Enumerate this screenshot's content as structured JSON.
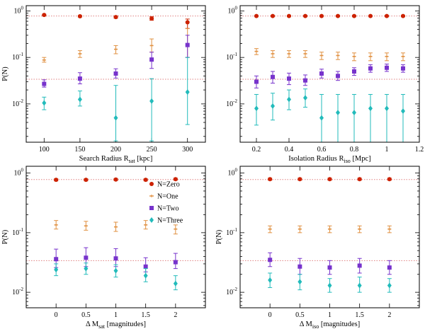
{
  "colors": {
    "N=Zero": "#cc2200",
    "N=One": "#e09040",
    "N=Two": "#7733cc",
    "N=Three": "#22bbbb",
    "ref_line": "#e08080"
  },
  "chart_data": [
    {
      "type": "scatter",
      "subtype": "errorbar",
      "xlabel": "Search Radius R",
      "xlabel_sub": "sat",
      "xlabel_suffix": " [kpc]",
      "ylabel": "P(N)",
      "yscale": "log",
      "xlim": [
        75,
        325
      ],
      "ylim": [
        0.0015,
        1.3
      ],
      "xticks": [
        100,
        150,
        200,
        250,
        300
      ],
      "xtick_labels": [
        "100",
        "150",
        "200",
        "250",
        "300"
      ],
      "reference_lines": [
        0.78,
        0.034
      ],
      "series": [
        {
          "name": "N=Zero",
          "marker": "circle",
          "x": [
            100,
            150,
            200,
            250,
            300
          ],
          "y": [
            0.82,
            0.77,
            0.74,
            0.69,
            0.57
          ],
          "ylow": [
            0.79,
            0.74,
            0.7,
            0.63,
            0.42
          ],
          "yhigh": [
            0.85,
            0.8,
            0.78,
            0.75,
            0.67
          ]
        },
        {
          "name": "N=One",
          "marker": "hline",
          "x": [
            100,
            150,
            200,
            250,
            300
          ],
          "y": [
            0.088,
            0.12,
            0.15,
            0.18,
            0.18
          ],
          "ylow": [
            0.079,
            0.1,
            0.12,
            0.13,
            0.1
          ],
          "yhigh": [
            0.1,
            0.14,
            0.18,
            0.25,
            0.42
          ]
        },
        {
          "name": "N=Two",
          "marker": "square",
          "x": [
            100,
            150,
            200,
            250,
            300
          ],
          "y": [
            0.027,
            0.035,
            0.045,
            0.09,
            0.185
          ],
          "ylow": [
            0.023,
            0.027,
            0.036,
            0.058,
            0.1
          ],
          "yhigh": [
            0.033,
            0.047,
            0.057,
            0.13,
            0.3
          ]
        },
        {
          "name": "N=Three",
          "marker": "diamond",
          "x": [
            100,
            150,
            200,
            250,
            300
          ],
          "y": [
            0.0105,
            0.0125,
            0.005,
            0.0115,
            0.018
          ],
          "ylow": [
            0.0075,
            0.009,
            0.0016,
            0.0016,
            0.0036
          ],
          "yhigh": [
            0.014,
            0.019,
            0.025,
            0.035,
            0.1
          ]
        }
      ]
    },
    {
      "type": "scatter",
      "subtype": "errorbar",
      "xlabel": "Isolation Radius R",
      "xlabel_sub": "iso",
      "xlabel_suffix": " [Mpc]",
      "ylabel": "",
      "yscale": "log",
      "xlim": [
        0.1,
        1.2
      ],
      "ylim": [
        0.0015,
        1.3
      ],
      "xticks": [
        0.2,
        0.4,
        0.6,
        0.8,
        1.0,
        1.2
      ],
      "xtick_labels": [
        "0.2",
        "0.4",
        "0.6",
        "0.8",
        "1",
        "1.2"
      ],
      "reference_lines": [
        0.78,
        0.034
      ],
      "series": [
        {
          "name": "N=Zero",
          "marker": "circle",
          "x": [
            0.2,
            0.3,
            0.4,
            0.5,
            0.6,
            0.7,
            0.8,
            0.9,
            1.0,
            1.1
          ],
          "y": [
            0.78,
            0.78,
            0.78,
            0.78,
            0.78,
            0.78,
            0.78,
            0.78,
            0.78,
            0.78
          ],
          "ylow": [
            0.76,
            0.76,
            0.76,
            0.76,
            0.76,
            0.76,
            0.76,
            0.76,
            0.76,
            0.76
          ],
          "yhigh": [
            0.8,
            0.8,
            0.8,
            0.8,
            0.8,
            0.8,
            0.8,
            0.8,
            0.8,
            0.8
          ]
        },
        {
          "name": "N=One",
          "marker": "hline",
          "x": [
            0.2,
            0.3,
            0.4,
            0.5,
            0.6,
            0.7,
            0.8,
            0.9,
            1.0,
            1.1
          ],
          "y": [
            0.135,
            0.12,
            0.12,
            0.12,
            0.11,
            0.11,
            0.105,
            0.105,
            0.105,
            0.105
          ],
          "ylow": [
            0.115,
            0.1,
            0.1,
            0.1,
            0.09,
            0.09,
            0.085,
            0.085,
            0.085,
            0.085
          ],
          "yhigh": [
            0.155,
            0.14,
            0.14,
            0.14,
            0.13,
            0.13,
            0.125,
            0.125,
            0.125,
            0.125
          ]
        },
        {
          "name": "N=Two",
          "marker": "square",
          "x": [
            0.2,
            0.3,
            0.4,
            0.5,
            0.6,
            0.7,
            0.8,
            0.9,
            1.0,
            1.1
          ],
          "y": [
            0.03,
            0.038,
            0.035,
            0.032,
            0.045,
            0.04,
            0.05,
            0.058,
            0.06,
            0.058
          ],
          "ylow": [
            0.022,
            0.028,
            0.026,
            0.025,
            0.036,
            0.032,
            0.041,
            0.048,
            0.05,
            0.048
          ],
          "yhigh": [
            0.04,
            0.05,
            0.046,
            0.042,
            0.056,
            0.05,
            0.06,
            0.07,
            0.072,
            0.07
          ]
        },
        {
          "name": "N=Three",
          "marker": "diamond",
          "x": [
            0.2,
            0.3,
            0.4,
            0.5,
            0.6,
            0.7,
            0.8,
            0.9,
            1.0,
            1.1
          ],
          "y": [
            0.008,
            0.009,
            0.0125,
            0.0135,
            0.005,
            0.0065,
            0.0065,
            0.008,
            0.008,
            0.007
          ],
          "ylow": [
            0.0035,
            0.0045,
            0.0075,
            0.0085,
            0.0015,
            0.0015,
            0.0015,
            0.0015,
            0.0015,
            0.0015
          ],
          "yhigh": [
            0.016,
            0.017,
            0.02,
            0.021,
            0.016,
            0.016,
            0.016,
            0.016,
            0.016,
            0.016
          ]
        }
      ]
    },
    {
      "type": "scatter",
      "subtype": "errorbar",
      "xlabel": "Δ M",
      "xlabel_sub": "sat",
      "xlabel_suffix": " [magnitudes]",
      "ylabel": "P(N)",
      "yscale": "log",
      "xlim": [
        -0.5,
        2.5
      ],
      "ylim": [
        0.0055,
        1.3
      ],
      "xticks": [
        0,
        0.5,
        1,
        1.5,
        2
      ],
      "xtick_labels": [
        "0",
        "0.5",
        "1",
        "1.5",
        "2"
      ],
      "reference_lines": [
        0.78,
        0.034
      ],
      "legend": {
        "position": "upper right",
        "entries": [
          "N=Zero",
          "N=One",
          "N=Two",
          "N=Three"
        ]
      },
      "series": [
        {
          "name": "N=Zero",
          "marker": "circle",
          "x": [
            0,
            0.5,
            1,
            1.5,
            2
          ],
          "y": [
            0.77,
            0.77,
            0.78,
            0.77,
            0.79
          ],
          "ylow": [
            0.74,
            0.74,
            0.75,
            0.74,
            0.76
          ],
          "yhigh": [
            0.8,
            0.8,
            0.81,
            0.8,
            0.82
          ]
        },
        {
          "name": "N=One",
          "marker": "hline",
          "x": [
            0,
            0.5,
            1,
            1.5,
            2
          ],
          "y": [
            0.135,
            0.13,
            0.125,
            0.135,
            0.115
          ],
          "ylow": [
            0.115,
            0.11,
            0.105,
            0.115,
            0.095
          ],
          "yhigh": [
            0.16,
            0.155,
            0.15,
            0.16,
            0.135
          ]
        },
        {
          "name": "N=Two",
          "marker": "square",
          "x": [
            0,
            0.5,
            1,
            1.5,
            2
          ],
          "y": [
            0.036,
            0.038,
            0.037,
            0.027,
            0.032
          ],
          "ylow": [
            0.026,
            0.027,
            0.027,
            0.022,
            0.025
          ],
          "yhigh": [
            0.053,
            0.056,
            0.054,
            0.038,
            0.045
          ]
        },
        {
          "name": "N=Three",
          "marker": "diamond",
          "x": [
            0,
            0.5,
            1,
            1.5,
            2
          ],
          "y": [
            0.024,
            0.025,
            0.023,
            0.019,
            0.014
          ],
          "ylow": [
            0.019,
            0.02,
            0.018,
            0.015,
            0.011
          ],
          "yhigh": [
            0.03,
            0.031,
            0.029,
            0.025,
            0.019
          ]
        }
      ]
    },
    {
      "type": "scatter",
      "subtype": "errorbar",
      "xlabel": "Δ M",
      "xlabel_sub": "iso",
      "xlabel_suffix": " [magnitudes]",
      "ylabel": "P(N)",
      "yscale": "log",
      "xlim": [
        -0.5,
        2.5
      ],
      "ylim": [
        0.0055,
        1.3
      ],
      "xticks": [
        0,
        0.5,
        1,
        1.5,
        2
      ],
      "xtick_labels": [
        "0",
        "0.5",
        "1",
        "1.5",
        "2"
      ],
      "reference_lines": [
        0.78,
        0.034
      ],
      "series": [
        {
          "name": "N=Zero",
          "marker": "circle",
          "x": [
            0,
            0.5,
            1,
            1.5,
            2
          ],
          "y": [
            0.79,
            0.79,
            0.79,
            0.79,
            0.79
          ],
          "ylow": [
            0.76,
            0.76,
            0.76,
            0.76,
            0.76
          ],
          "yhigh": [
            0.82,
            0.82,
            0.82,
            0.82,
            0.82
          ]
        },
        {
          "name": "N=One",
          "marker": "hline",
          "x": [
            0,
            0.5,
            1,
            1.5,
            2
          ],
          "y": [
            0.115,
            0.115,
            0.115,
            0.115,
            0.115
          ],
          "ylow": [
            0.1,
            0.1,
            0.1,
            0.1,
            0.1
          ],
          "yhigh": [
            0.13,
            0.13,
            0.13,
            0.13,
            0.13
          ]
        },
        {
          "name": "N=Two",
          "marker": "square",
          "x": [
            0,
            0.5,
            1,
            1.5,
            2
          ],
          "y": [
            0.035,
            0.027,
            0.026,
            0.028,
            0.026
          ],
          "ylow": [
            0.027,
            0.02,
            0.02,
            0.021,
            0.02
          ],
          "yhigh": [
            0.046,
            0.037,
            0.034,
            0.037,
            0.034
          ]
        },
        {
          "name": "N=Three",
          "marker": "diamond",
          "x": [
            0,
            0.5,
            1,
            1.5,
            2
          ],
          "y": [
            0.016,
            0.015,
            0.013,
            0.013,
            0.013
          ],
          "ylow": [
            0.012,
            0.011,
            0.01,
            0.01,
            0.01
          ],
          "yhigh": [
            0.021,
            0.02,
            0.017,
            0.018,
            0.017
          ]
        }
      ]
    }
  ]
}
